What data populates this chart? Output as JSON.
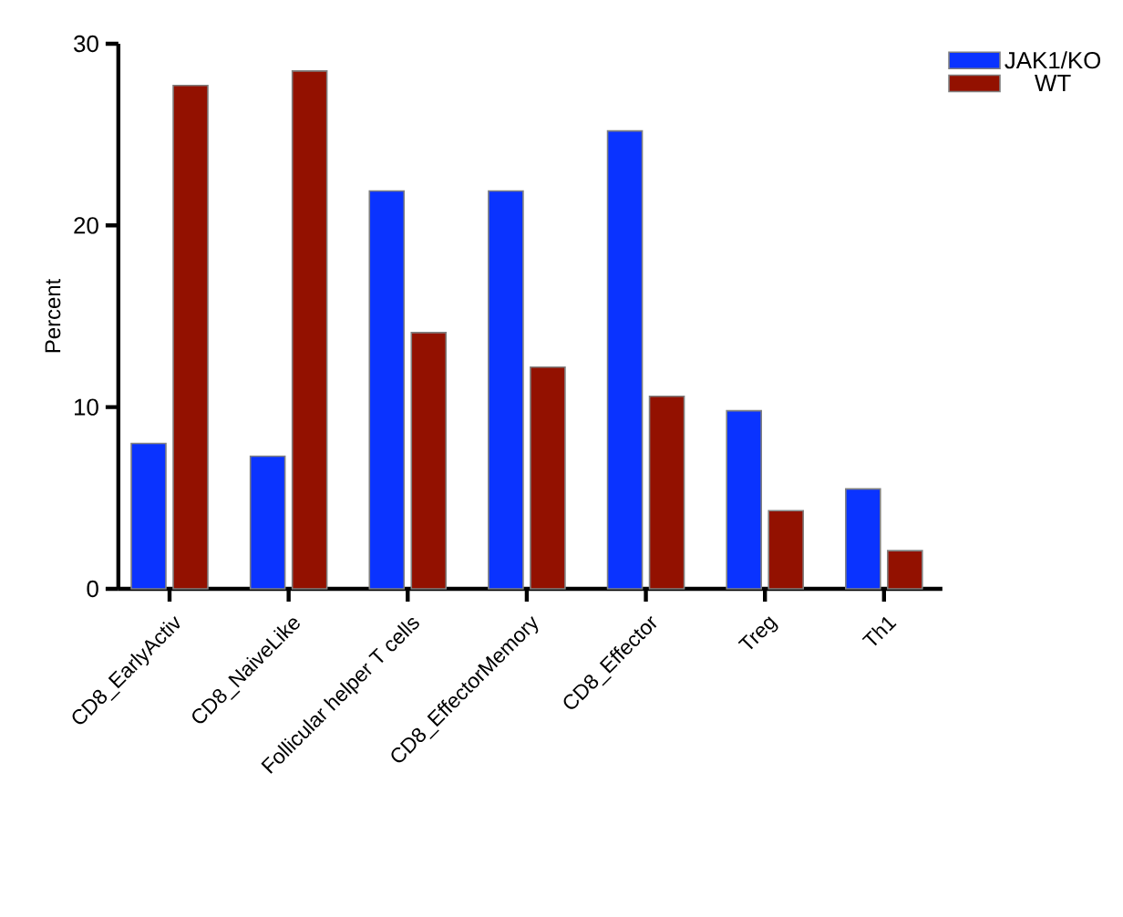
{
  "chart_data": {
    "type": "bar",
    "ylabel": "Percent",
    "categories": [
      "CD8_EarlyActiv",
      "CD8_NaiveLike",
      "Follicular helper T cells",
      "CD8_EffectorMemory",
      "CD8_Effector",
      "Treg",
      "Th1"
    ],
    "series": [
      {
        "name": "JAK1/KO",
        "color": "#0a33ff",
        "values": [
          8.0,
          7.3,
          21.9,
          21.9,
          25.2,
          9.8,
          5.5
        ]
      },
      {
        "name": "WT",
        "color": "#931100",
        "values": [
          27.7,
          28.5,
          14.1,
          12.2,
          10.6,
          4.3,
          2.1
        ]
      }
    ],
    "ylim": [
      0,
      30
    ],
    "yticks": [
      0,
      10,
      20,
      30
    ],
    "legend": "top right"
  }
}
